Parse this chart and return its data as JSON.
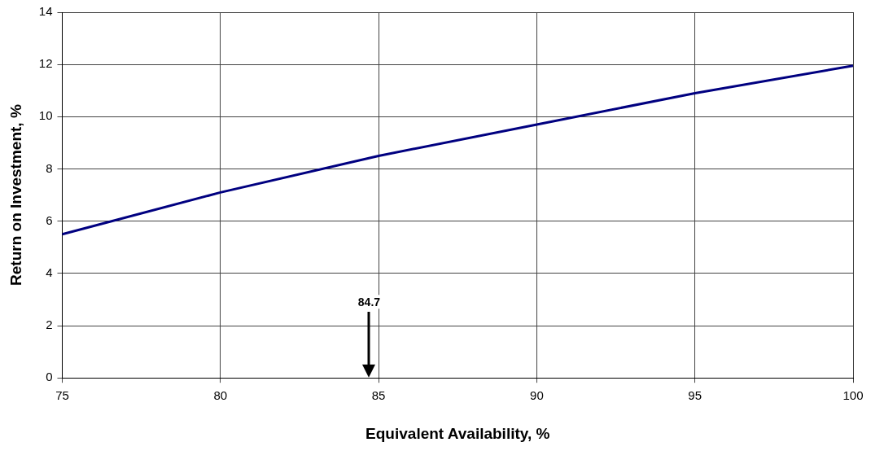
{
  "chart_data": {
    "type": "line",
    "xlabel": "Equivalent Availability, %",
    "ylabel": "Return on Investment, %",
    "x": [
      75,
      80,
      85,
      90,
      95,
      100
    ],
    "series": [
      {
        "color": "#000080",
        "values": [
          5.5,
          7.1,
          8.5,
          9.7,
          10.9,
          11.95
        ]
      }
    ],
    "xlim": [
      75,
      100
    ],
    "xticks": [
      75,
      80,
      85,
      90,
      95,
      100
    ],
    "ylim": [
      0,
      14
    ],
    "yticks": [
      0,
      2,
      4,
      6,
      8,
      10,
      12,
      14
    ],
    "grid": true,
    "legend": false,
    "marker": "none",
    "line_style": "solid",
    "ref_lines": [
      {
        "axis": "x",
        "value": 84.7,
        "label": "84.7",
        "color": "#000000"
      }
    ]
  }
}
